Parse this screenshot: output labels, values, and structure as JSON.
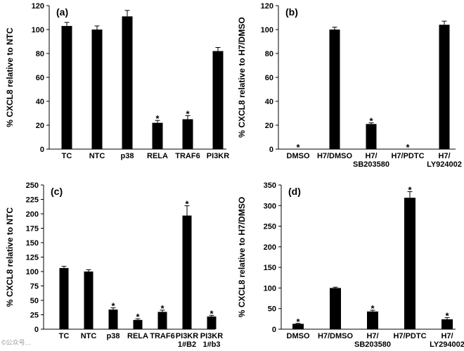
{
  "chart_data": [
    {
      "type": "bar",
      "panel": "(a)",
      "ylabel": "% CXCL8 relative to NTC",
      "ylim": [
        0,
        120
      ],
      "yticks": [
        0,
        20,
        40,
        60,
        80,
        100,
        120
      ],
      "categories": [
        "TC",
        "NTC",
        "p38",
        "RELA",
        "TRAF6",
        "PI3KR"
      ],
      "values": [
        103,
        100,
        111,
        22,
        25,
        82
      ],
      "errors": [
        3,
        3,
        5,
        2,
        3,
        3
      ],
      "significant": [
        false,
        false,
        false,
        true,
        true,
        false
      ]
    },
    {
      "type": "bar",
      "panel": "(b)",
      "ylabel": "% CXCL8 relative to H7/DMSO",
      "ylim": [
        0,
        120
      ],
      "yticks": [
        0,
        20,
        40,
        60,
        80,
        100,
        120
      ],
      "categories": [
        "DMSO",
        "H7/DMSO",
        "H7/\nSB203580",
        "H7/PDTC",
        "H7/\nLY924002"
      ],
      "values": [
        0,
        100,
        21,
        0,
        104
      ],
      "errors": [
        0,
        2,
        1,
        0,
        3
      ],
      "significant": [
        true,
        false,
        true,
        true,
        false
      ]
    },
    {
      "type": "bar",
      "panel": "(c)",
      "ylabel": "% CXCL8 relative to NTC",
      "ylim": [
        0,
        250
      ],
      "yticks": [
        0,
        25,
        50,
        75,
        100,
        125,
        150,
        175,
        200,
        225,
        250
      ],
      "categories": [
        "TC",
        "NTC",
        "p38",
        "RELA",
        "TRAF6",
        "PI3KR\n1#B2",
        "PI3KR\n1#b3"
      ],
      "values": [
        106,
        100,
        34,
        16,
        30,
        197,
        22
      ],
      "errors": [
        3,
        3,
        3,
        2,
        3,
        17,
        2
      ],
      "significant": [
        false,
        false,
        true,
        true,
        true,
        true,
        true
      ]
    },
    {
      "type": "bar",
      "panel": "(d)",
      "ylabel": "% CXCL8 relative to H7/DMSO",
      "ylim": [
        0,
        350
      ],
      "yticks": [
        0,
        50,
        100,
        150,
        200,
        250,
        300,
        350
      ],
      "categories": [
        "DMSO",
        "H7/DMSO",
        "H7/\nSB203580",
        "H7/PDTC",
        "H7/\nLY294002"
      ],
      "values": [
        13,
        100,
        43,
        319,
        24
      ],
      "errors": [
        1,
        2,
        3,
        15,
        4
      ],
      "significant": [
        true,
        false,
        true,
        true,
        true
      ]
    }
  ],
  "significance_mark": "*",
  "bar_color": "#000000",
  "watermark": "©公众号…"
}
